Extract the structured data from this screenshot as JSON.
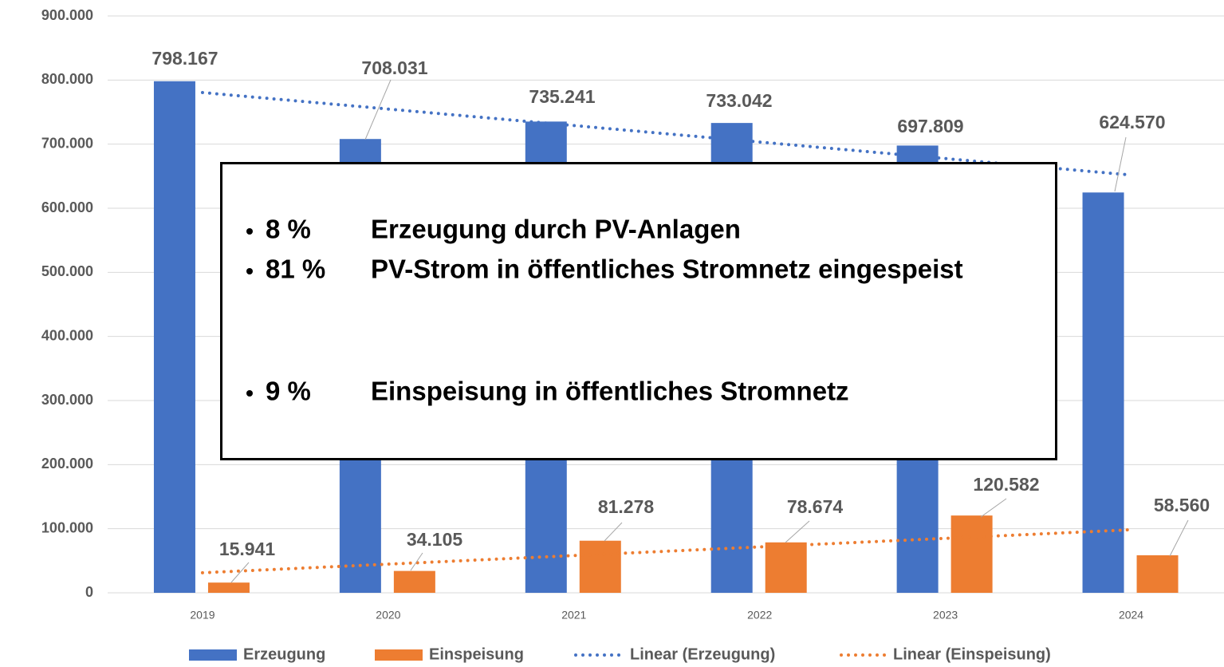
{
  "chart_data": {
    "type": "bar",
    "categories": [
      "2019",
      "2020",
      "2021",
      "2022",
      "2023",
      "2024"
    ],
    "series": [
      {
        "name": "Erzeugung",
        "color": "#4472c4",
        "values": [
          798167,
          708031,
          735241,
          733042,
          697809,
          624570
        ],
        "value_labels": [
          "798.167",
          "708.031",
          "735.241",
          "733.042",
          "697.809",
          "624.570"
        ],
        "trendline": {
          "name": "Linear (Erzeugung)",
          "type": "linear"
        }
      },
      {
        "name": "Einspeisung",
        "color": "#ed7d31",
        "values": [
          15941,
          34105,
          81278,
          78674,
          120582,
          58560
        ],
        "value_labels": [
          "15.941",
          "34.105",
          "81.278",
          "78.674",
          "120.582",
          "58.560"
        ],
        "trendline": {
          "name": "Linear (Einspeisung)",
          "type": "linear"
        }
      }
    ],
    "ylim": [
      0,
      900000
    ],
    "yticks": [
      0,
      {
        "value": 100000,
        "label": "100.000"
      },
      {
        "value": 200000,
        "label": "200.000"
      },
      {
        "value": 300000,
        "label": "300.000"
      },
      {
        "value": 400000,
        "label": "400.000"
      },
      {
        "value": 500000,
        "label": "500.000"
      },
      {
        "value": 600000,
        "label": "600.000"
      },
      {
        "value": 700000,
        "label": "700.000"
      },
      {
        "value": 800000,
        "label": "800.000"
      },
      {
        "value": 900000,
        "label": "900.000"
      }
    ],
    "grid": true,
    "legend": "bottom",
    "annotation": {
      "items": [
        {
          "pct": "8 %",
          "text": "Erzeugung durch PV-Anlagen"
        },
        {
          "pct": "81 %",
          "text": "PV-Strom in öffentliches  Stromnetz eingespeist"
        },
        {
          "pct": "9 %",
          "text": "Einspeisung in öffentliches Stromnetz"
        }
      ]
    }
  }
}
